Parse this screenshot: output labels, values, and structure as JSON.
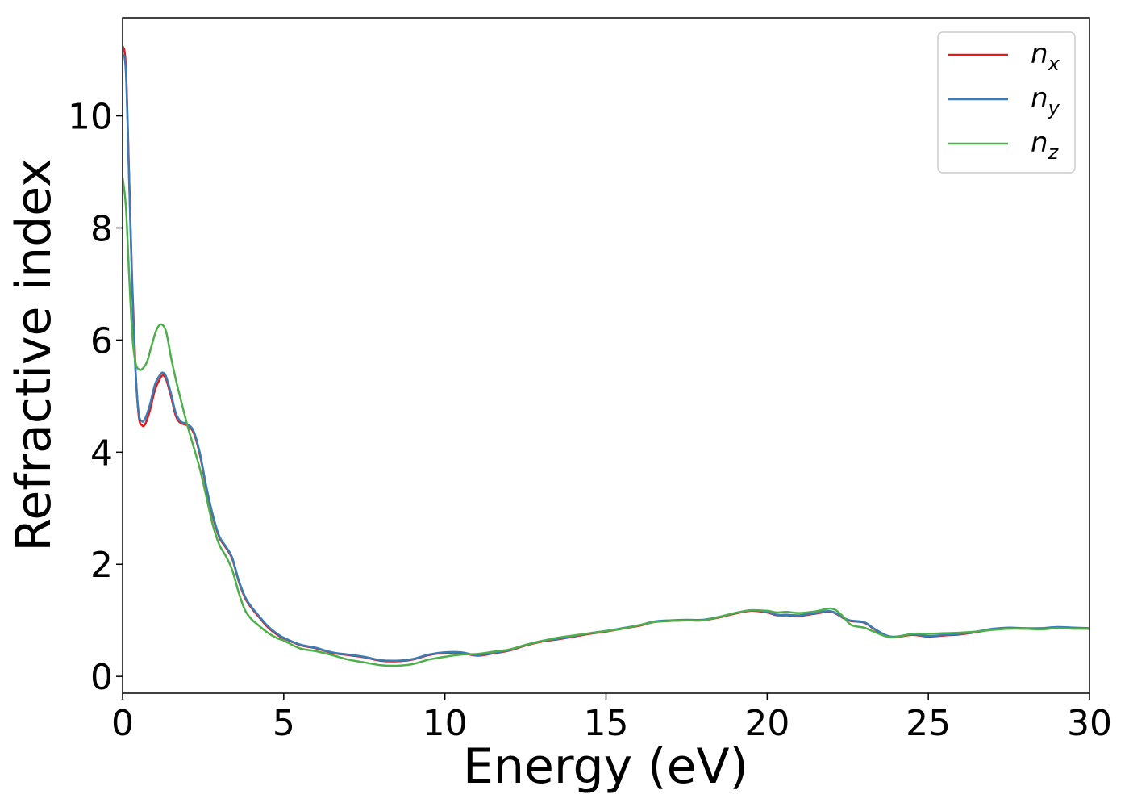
{
  "chart_data": {
    "type": "line",
    "xlabel": "Energy (eV)",
    "ylabel": "Refractive index",
    "xlim": [
      0,
      30
    ],
    "ylim": [
      -0.3,
      11.75
    ],
    "xticks": [
      0,
      5,
      10,
      15,
      20,
      25,
      30
    ],
    "yticks": [
      0,
      2,
      4,
      6,
      8,
      10
    ],
    "grid": false,
    "legend_position": "top-right",
    "colors": {
      "nx": "#e41a1c",
      "ny": "#377eb8",
      "nz": "#4daf4a"
    },
    "series": [
      {
        "name": "n",
        "sub": "x",
        "key": "nx",
        "points": [
          [
            0,
            11.25
          ],
          [
            0.1,
            10.9
          ],
          [
            0.2,
            9.0
          ],
          [
            0.3,
            7.0
          ],
          [
            0.4,
            5.5
          ],
          [
            0.5,
            4.65
          ],
          [
            0.6,
            4.48
          ],
          [
            0.7,
            4.5
          ],
          [
            0.85,
            4.75
          ],
          [
            1.0,
            5.1
          ],
          [
            1.15,
            5.3
          ],
          [
            1.25,
            5.37
          ],
          [
            1.35,
            5.3
          ],
          [
            1.5,
            5.0
          ],
          [
            1.65,
            4.65
          ],
          [
            1.8,
            4.52
          ],
          [
            2.0,
            4.48
          ],
          [
            2.2,
            4.35
          ],
          [
            2.4,
            3.95
          ],
          [
            2.6,
            3.35
          ],
          [
            2.8,
            2.85
          ],
          [
            3.0,
            2.48
          ],
          [
            3.2,
            2.3
          ],
          [
            3.4,
            2.1
          ],
          [
            3.6,
            1.7
          ],
          [
            3.8,
            1.4
          ],
          [
            4.0,
            1.22
          ],
          [
            4.2,
            1.08
          ],
          [
            4.5,
            0.88
          ],
          [
            4.8,
            0.74
          ],
          [
            5.0,
            0.68
          ],
          [
            5.5,
            0.56
          ],
          [
            6.0,
            0.5
          ],
          [
            6.5,
            0.42
          ],
          [
            7.0,
            0.38
          ],
          [
            7.5,
            0.34
          ],
          [
            8.0,
            0.28
          ],
          [
            8.5,
            0.27
          ],
          [
            9.0,
            0.3
          ],
          [
            9.5,
            0.38
          ],
          [
            10.0,
            0.42
          ],
          [
            10.5,
            0.42
          ],
          [
            11.0,
            0.37
          ],
          [
            11.5,
            0.41
          ],
          [
            12.0,
            0.46
          ],
          [
            12.5,
            0.55
          ],
          [
            13.0,
            0.62
          ],
          [
            13.5,
            0.66
          ],
          [
            14.0,
            0.71
          ],
          [
            14.5,
            0.76
          ],
          [
            15.0,
            0.8
          ],
          [
            15.5,
            0.85
          ],
          [
            16.0,
            0.9
          ],
          [
            16.5,
            0.97
          ],
          [
            17.0,
            0.99
          ],
          [
            17.5,
            1.0
          ],
          [
            18.0,
            1.0
          ],
          [
            18.5,
            1.05
          ],
          [
            19.0,
            1.12
          ],
          [
            19.5,
            1.17
          ],
          [
            20.0,
            1.14
          ],
          [
            20.3,
            1.09
          ],
          [
            20.6,
            1.09
          ],
          [
            21.0,
            1.08
          ],
          [
            21.5,
            1.12
          ],
          [
            22.0,
            1.15
          ],
          [
            22.5,
            1.0
          ],
          [
            23.0,
            0.96
          ],
          [
            23.3,
            0.85
          ],
          [
            23.7,
            0.72
          ],
          [
            24.0,
            0.7
          ],
          [
            24.5,
            0.74
          ],
          [
            25.0,
            0.71
          ],
          [
            25.5,
            0.73
          ],
          [
            26.0,
            0.75
          ],
          [
            26.5,
            0.79
          ],
          [
            27.0,
            0.84
          ],
          [
            27.5,
            0.86
          ],
          [
            28.0,
            0.85
          ],
          [
            28.5,
            0.85
          ],
          [
            29.0,
            0.87
          ],
          [
            29.5,
            0.86
          ],
          [
            30.0,
            0.85
          ]
        ]
      },
      {
        "name": "n",
        "sub": "y",
        "key": "ny",
        "points": [
          [
            0,
            11.1
          ],
          [
            0.1,
            10.8
          ],
          [
            0.2,
            8.9
          ],
          [
            0.3,
            6.9
          ],
          [
            0.4,
            5.45
          ],
          [
            0.5,
            4.7
          ],
          [
            0.6,
            4.55
          ],
          [
            0.7,
            4.6
          ],
          [
            0.85,
            4.85
          ],
          [
            1.0,
            5.2
          ],
          [
            1.15,
            5.37
          ],
          [
            1.25,
            5.42
          ],
          [
            1.35,
            5.35
          ],
          [
            1.5,
            5.05
          ],
          [
            1.65,
            4.7
          ],
          [
            1.8,
            4.55
          ],
          [
            2.0,
            4.5
          ],
          [
            2.2,
            4.38
          ],
          [
            2.4,
            3.98
          ],
          [
            2.6,
            3.38
          ],
          [
            2.8,
            2.88
          ],
          [
            3.0,
            2.5
          ],
          [
            3.2,
            2.32
          ],
          [
            3.4,
            2.12
          ],
          [
            3.6,
            1.72
          ],
          [
            3.8,
            1.42
          ],
          [
            4.0,
            1.24
          ],
          [
            4.2,
            1.1
          ],
          [
            4.5,
            0.9
          ],
          [
            4.8,
            0.76
          ],
          [
            5.0,
            0.69
          ],
          [
            5.5,
            0.57
          ],
          [
            6.0,
            0.51
          ],
          [
            6.5,
            0.43
          ],
          [
            7.0,
            0.39
          ],
          [
            7.5,
            0.35
          ],
          [
            8.0,
            0.29
          ],
          [
            8.5,
            0.28
          ],
          [
            9.0,
            0.31
          ],
          [
            9.5,
            0.39
          ],
          [
            10.0,
            0.43
          ],
          [
            10.5,
            0.43
          ],
          [
            11.0,
            0.38
          ],
          [
            11.5,
            0.42
          ],
          [
            12.0,
            0.47
          ],
          [
            12.5,
            0.56
          ],
          [
            13.0,
            0.63
          ],
          [
            13.5,
            0.67
          ],
          [
            14.0,
            0.72
          ],
          [
            14.5,
            0.77
          ],
          [
            15.0,
            0.81
          ],
          [
            15.5,
            0.86
          ],
          [
            16.0,
            0.91
          ],
          [
            16.5,
            0.98
          ],
          [
            17.0,
            1.0
          ],
          [
            17.5,
            1.01
          ],
          [
            18.0,
            1.01
          ],
          [
            18.5,
            1.06
          ],
          [
            19.0,
            1.13
          ],
          [
            19.5,
            1.18
          ],
          [
            20.0,
            1.15
          ],
          [
            20.3,
            1.1
          ],
          [
            20.6,
            1.1
          ],
          [
            21.0,
            1.09
          ],
          [
            21.5,
            1.13
          ],
          [
            22.0,
            1.16
          ],
          [
            22.5,
            1.01
          ],
          [
            23.0,
            0.97
          ],
          [
            23.3,
            0.86
          ],
          [
            23.7,
            0.73
          ],
          [
            24.0,
            0.71
          ],
          [
            24.5,
            0.75
          ],
          [
            25.0,
            0.72
          ],
          [
            25.5,
            0.74
          ],
          [
            26.0,
            0.76
          ],
          [
            26.5,
            0.8
          ],
          [
            27.0,
            0.85
          ],
          [
            27.5,
            0.87
          ],
          [
            28.0,
            0.86
          ],
          [
            28.5,
            0.86
          ],
          [
            29.0,
            0.88
          ],
          [
            29.5,
            0.87
          ],
          [
            30.0,
            0.86
          ]
        ]
      },
      {
        "name": "n",
        "sub": "z",
        "key": "nz",
        "points": [
          [
            0,
            8.9
          ],
          [
            0.1,
            8.4
          ],
          [
            0.2,
            7.2
          ],
          [
            0.3,
            6.1
          ],
          [
            0.4,
            5.6
          ],
          [
            0.5,
            5.48
          ],
          [
            0.6,
            5.48
          ],
          [
            0.75,
            5.6
          ],
          [
            0.9,
            5.9
          ],
          [
            1.05,
            6.18
          ],
          [
            1.2,
            6.28
          ],
          [
            1.35,
            6.15
          ],
          [
            1.5,
            5.7
          ],
          [
            1.65,
            5.3
          ],
          [
            1.8,
            4.95
          ],
          [
            2.0,
            4.5
          ],
          [
            2.2,
            4.1
          ],
          [
            2.4,
            3.7
          ],
          [
            2.6,
            3.2
          ],
          [
            2.8,
            2.7
          ],
          [
            3.0,
            2.35
          ],
          [
            3.2,
            2.15
          ],
          [
            3.4,
            1.9
          ],
          [
            3.6,
            1.5
          ],
          [
            3.8,
            1.18
          ],
          [
            4.0,
            1.02
          ],
          [
            4.2,
            0.92
          ],
          [
            4.5,
            0.78
          ],
          [
            4.8,
            0.68
          ],
          [
            5.0,
            0.64
          ],
          [
            5.5,
            0.5
          ],
          [
            6.0,
            0.45
          ],
          [
            6.5,
            0.38
          ],
          [
            7.0,
            0.3
          ],
          [
            7.5,
            0.25
          ],
          [
            8.0,
            0.2
          ],
          [
            8.5,
            0.19
          ],
          [
            9.0,
            0.22
          ],
          [
            9.5,
            0.3
          ],
          [
            10.0,
            0.35
          ],
          [
            10.5,
            0.39
          ],
          [
            11.0,
            0.4
          ],
          [
            11.5,
            0.44
          ],
          [
            12.0,
            0.48
          ],
          [
            12.5,
            0.56
          ],
          [
            13.0,
            0.63
          ],
          [
            13.5,
            0.69
          ],
          [
            14.0,
            0.73
          ],
          [
            14.5,
            0.77
          ],
          [
            15.0,
            0.81
          ],
          [
            15.5,
            0.85
          ],
          [
            16.0,
            0.91
          ],
          [
            16.5,
            0.97
          ],
          [
            17.0,
            0.99
          ],
          [
            17.5,
            1.0
          ],
          [
            18.0,
            1.0
          ],
          [
            18.5,
            1.06
          ],
          [
            19.0,
            1.13
          ],
          [
            19.5,
            1.18
          ],
          [
            20.0,
            1.17
          ],
          [
            20.3,
            1.14
          ],
          [
            20.6,
            1.15
          ],
          [
            21.0,
            1.13
          ],
          [
            21.5,
            1.16
          ],
          [
            22.0,
            1.21
          ],
          [
            22.3,
            1.1
          ],
          [
            22.6,
            0.92
          ],
          [
            23.0,
            0.87
          ],
          [
            23.3,
            0.8
          ],
          [
            23.7,
            0.71
          ],
          [
            24.0,
            0.7
          ],
          [
            24.5,
            0.76
          ],
          [
            25.0,
            0.76
          ],
          [
            25.5,
            0.77
          ],
          [
            26.0,
            0.78
          ],
          [
            26.5,
            0.8
          ],
          [
            27.0,
            0.83
          ],
          [
            27.5,
            0.85
          ],
          [
            28.0,
            0.85
          ],
          [
            28.5,
            0.84
          ],
          [
            29.0,
            0.86
          ],
          [
            29.5,
            0.85
          ],
          [
            30.0,
            0.85
          ]
        ]
      }
    ]
  }
}
